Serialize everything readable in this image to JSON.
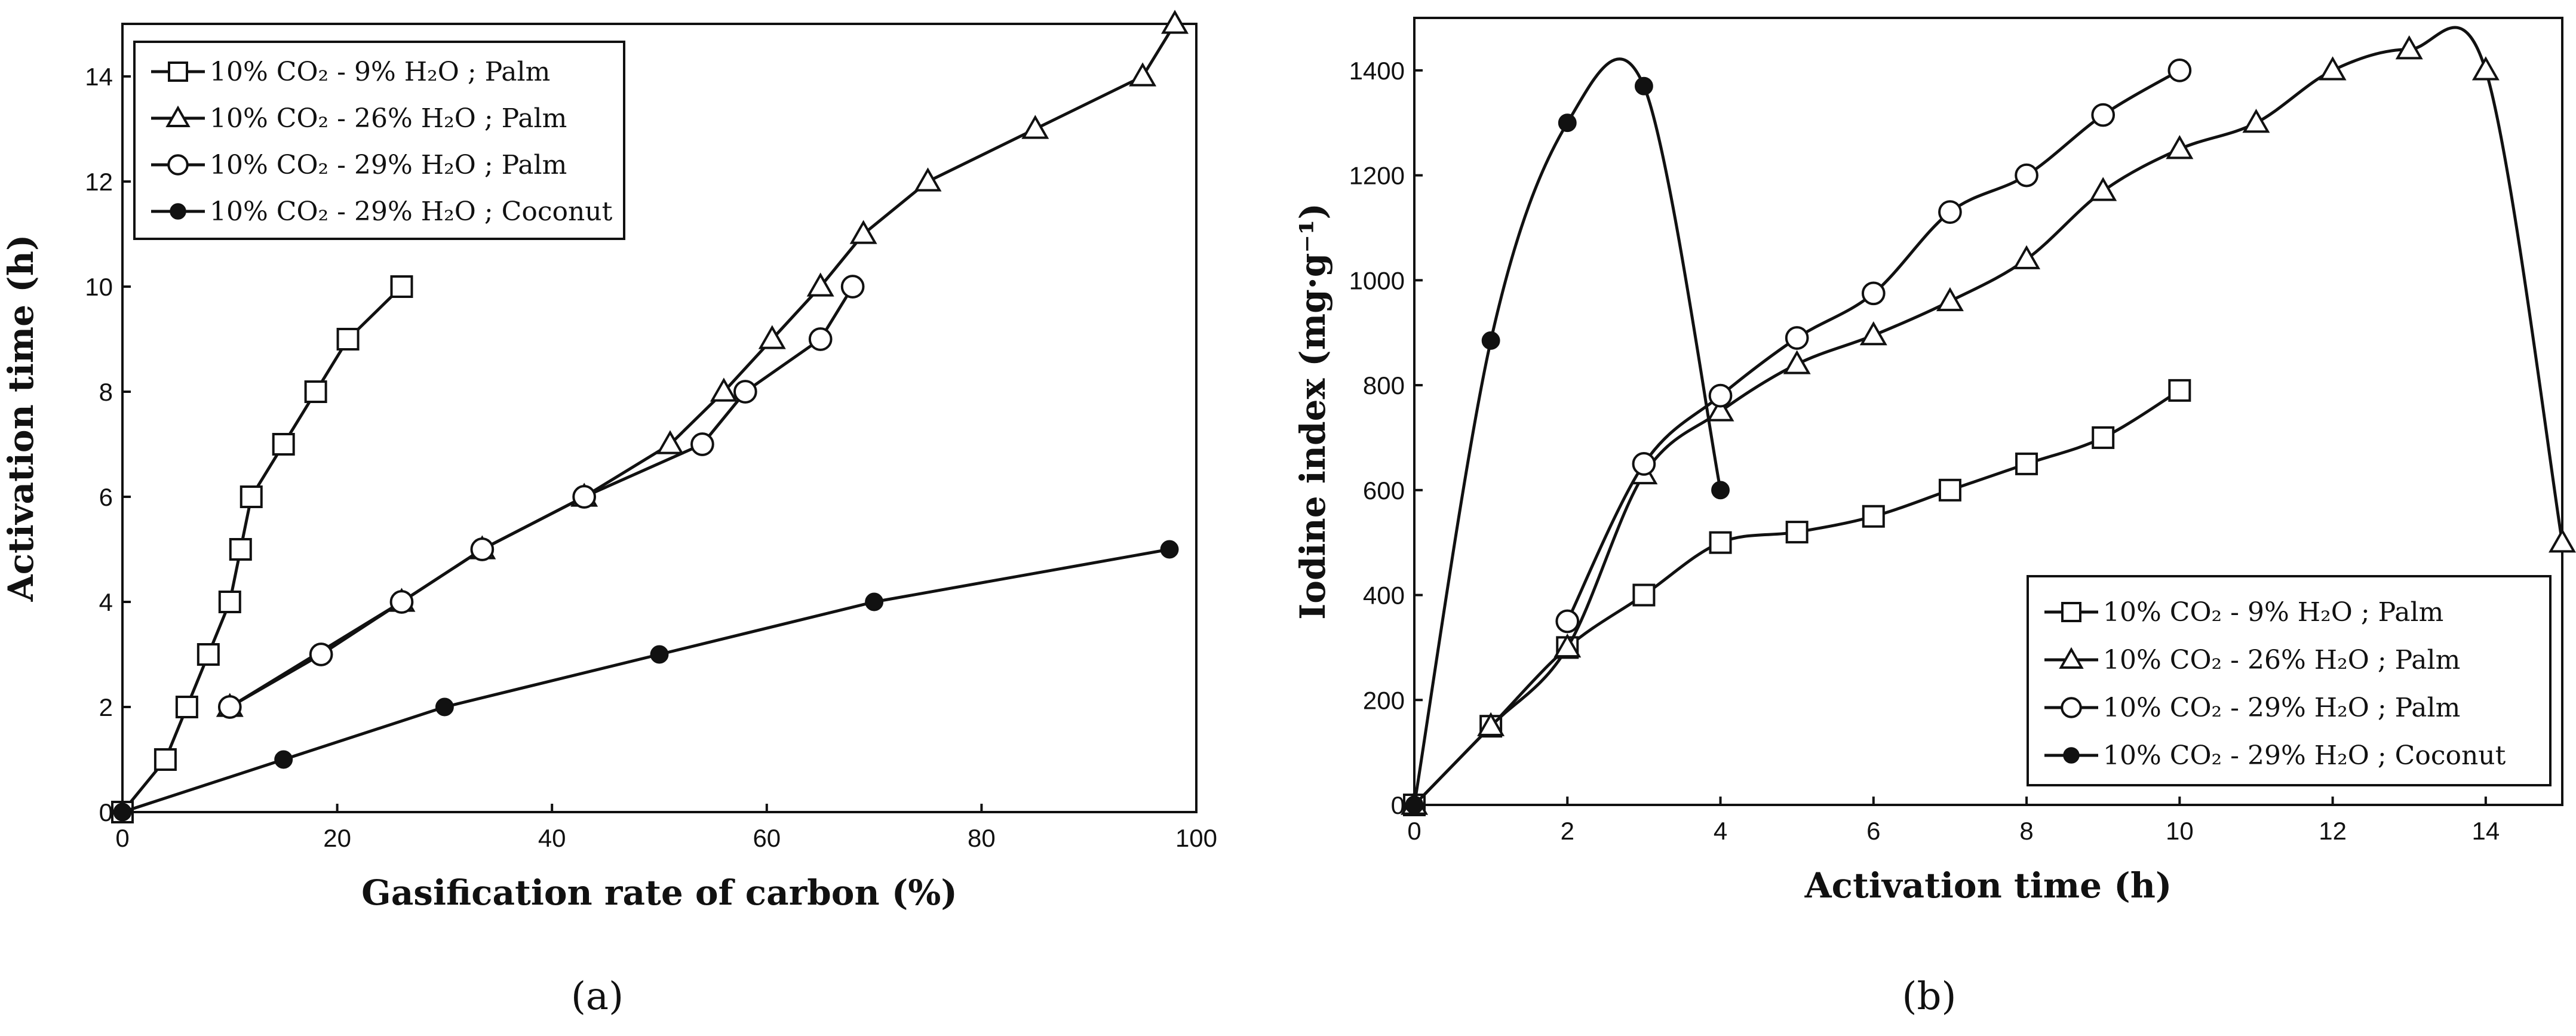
{
  "figure": {
    "panel_a_label": "(a)",
    "panel_b_label": "(b)"
  },
  "chart_data": [
    {
      "type": "line",
      "panel": "a",
      "xlabel": "Gasification rate of carbon (%)",
      "ylabel": "Activation time (h)",
      "xlim": [
        0,
        100
      ],
      "ylim": [
        0,
        15
      ],
      "xticks": [
        0,
        20,
        40,
        60,
        80,
        100
      ],
      "yticks": [
        0,
        2,
        4,
        6,
        8,
        10,
        12,
        14
      ],
      "grid": false,
      "legend_position": "top-left",
      "series": [
        {
          "name": "10% CO2 - 9% H2O ; Palm",
          "legend": "10% CO₂ -  9%  H₂O ; Palm",
          "marker": "square",
          "smooth": false,
          "points": [
            [
              0,
              0
            ],
            [
              4,
              1
            ],
            [
              6,
              2
            ],
            [
              8,
              3
            ],
            [
              10,
              4
            ],
            [
              11,
              5
            ],
            [
              12,
              6
            ],
            [
              15,
              7
            ],
            [
              18,
              8
            ],
            [
              21,
              9
            ],
            [
              26,
              10
            ]
          ]
        },
        {
          "name": "10% CO2 - 26% H2O ; Palm",
          "legend": "10% CO₂ - 26% H₂O ; Palm",
          "marker": "triangle",
          "smooth": false,
          "points": [
            [
              10,
              2
            ],
            [
              26,
              4
            ],
            [
              33.5,
              5
            ],
            [
              43,
              6
            ],
            [
              51,
              7
            ],
            [
              56,
              8
            ],
            [
              60.5,
              9
            ],
            [
              65,
              10
            ],
            [
              69,
              11
            ],
            [
              75,
              12
            ],
            [
              85,
              13
            ],
            [
              95,
              14
            ],
            [
              98,
              15
            ]
          ]
        },
        {
          "name": "10% CO2 - 29% H2O ; Palm",
          "legend": "10% CO₂ - 29% H₂O ; Palm",
          "marker": "circle-open",
          "smooth": false,
          "points": [
            [
              10,
              2
            ],
            [
              18.5,
              3
            ],
            [
              26,
              4
            ],
            [
              33.5,
              5
            ],
            [
              43,
              6
            ],
            [
              54,
              7
            ],
            [
              58,
              8
            ],
            [
              65,
              9
            ],
            [
              68,
              10
            ]
          ]
        },
        {
          "name": "10% CO2 - 29% H2O ; Coconut",
          "legend": "10% CO₂ - 29% H₂O ; Coconut",
          "marker": "circle-filled",
          "smooth": false,
          "points": [
            [
              0,
              0
            ],
            [
              15,
              1
            ],
            [
              30,
              2
            ],
            [
              50,
              3
            ],
            [
              70,
              4
            ],
            [
              97.5,
              5
            ]
          ]
        }
      ]
    },
    {
      "type": "line",
      "panel": "b",
      "xlabel": "Activation time  (h)",
      "ylabel": "Iodine index  (mg·g⁻¹)",
      "xlim": [
        0,
        15
      ],
      "ylim": [
        0,
        1500
      ],
      "xticks": [
        0,
        2,
        4,
        6,
        8,
        10,
        12,
        14
      ],
      "yticks": [
        0,
        200,
        400,
        600,
        800,
        1000,
        1200,
        1400
      ],
      "grid": false,
      "legend_position": "bottom-right",
      "series": [
        {
          "name": "10% CO2 - 9% H2O ; Palm",
          "legend": "10% CO₂ -  9%  H₂O ; Palm",
          "marker": "square",
          "smooth": true,
          "points": [
            [
              0,
              0
            ],
            [
              1,
              150
            ],
            [
              2,
              300
            ],
            [
              3,
              400
            ],
            [
              4,
              500
            ],
            [
              5,
              520
            ],
            [
              6,
              550
            ],
            [
              7,
              600
            ],
            [
              8,
              650
            ],
            [
              9,
              700
            ],
            [
              10,
              790
            ]
          ]
        },
        {
          "name": "10% CO2 - 26% H2O ; Palm",
          "legend": "10% CO₂ - 26% H₂O ; Palm",
          "marker": "triangle",
          "smooth": true,
          "points": [
            [
              0,
              0
            ],
            [
              1,
              150
            ],
            [
              2,
              300
            ],
            [
              3,
              630
            ],
            [
              4,
              750
            ],
            [
              5,
              840
            ],
            [
              6,
              895
            ],
            [
              7,
              960
            ],
            [
              8,
              1040
            ],
            [
              9,
              1170
            ],
            [
              10,
              1250
            ],
            [
              11,
              1300
            ],
            [
              12,
              1400
            ],
            [
              13,
              1440
            ],
            [
              14,
              1400
            ],
            [
              15,
              500
            ]
          ]
        },
        {
          "name": "10% CO2 - 29% H2O ; Palm",
          "legend": "10% CO₂ - 29% H₂O ; Palm",
          "marker": "circle-open",
          "smooth": true,
          "points": [
            [
              2,
              350
            ],
            [
              3,
              650
            ],
            [
              4,
              780
            ],
            [
              5,
              890
            ],
            [
              6,
              975
            ],
            [
              7,
              1130
            ],
            [
              8,
              1200
            ],
            [
              9,
              1315
            ],
            [
              10,
              1400
            ]
          ]
        },
        {
          "name": "10% CO2 - 29% H2O ; Coconut",
          "legend": "10% CO₂ - 29% H₂O ; Coconut",
          "marker": "circle-filled",
          "smooth": true,
          "points": [
            [
              0,
              0
            ],
            [
              1,
              885
            ],
            [
              2,
              1300
            ],
            [
              3,
              1370
            ],
            [
              4,
              600
            ]
          ]
        }
      ]
    }
  ]
}
